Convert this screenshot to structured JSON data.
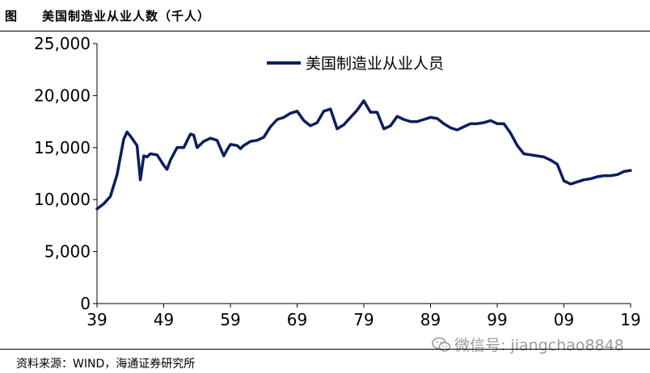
{
  "header": {
    "fig_label": "图",
    "title": "美国制造业从业人数（千人）"
  },
  "footer": {
    "source": "资料来源：WIND，海通证券研究所"
  },
  "watermark": {
    "text": "微信号: jiangchao8848"
  },
  "colors": {
    "line": "#0b1f5c",
    "axis": "#000000",
    "text": "#000000",
    "watermark": "#9a9a9a"
  },
  "chart_data": {
    "type": "line",
    "title": "",
    "xlabel": "",
    "ylabel": "",
    "ylim": [
      0,
      25000
    ],
    "xlim": [
      1939,
      2019
    ],
    "yticks": [
      0,
      5000,
      10000,
      15000,
      20000,
      25000
    ],
    "ytick_labels": [
      "0",
      "5,000",
      "10,000",
      "15,000",
      "20,000",
      "25,000"
    ],
    "xticks": [
      1939,
      1949,
      1959,
      1969,
      1979,
      1989,
      1999,
      2009,
      2019
    ],
    "xtick_labels": [
      "39",
      "49",
      "59",
      "69",
      "79",
      "89",
      "99",
      "09",
      "19"
    ],
    "grid": false,
    "legend_position": "top-center",
    "series": [
      {
        "name": "美国制造业从业人员",
        "x": [
          1939,
          1940,
          1941,
          1942,
          1943,
          1943.5,
          1944,
          1945,
          1945.5,
          1946,
          1946.5,
          1947,
          1948,
          1949,
          1949.5,
          1950,
          1951,
          1952,
          1953,
          1953.5,
          1954,
          1955,
          1956,
          1957,
          1958,
          1958.5,
          1959,
          1960,
          1960.5,
          1961,
          1962,
          1963,
          1964,
          1965,
          1966,
          1967,
          1968,
          1969,
          1970,
          1971,
          1972,
          1973,
          1974,
          1975,
          1976,
          1977,
          1978,
          1979,
          1980,
          1981,
          1982,
          1983,
          1984,
          1985,
          1986,
          1987,
          1988,
          1989,
          1990,
          1991,
          1992,
          1993,
          1994,
          1995,
          1996,
          1997,
          1998,
          1999,
          2000,
          2001,
          2002,
          2003,
          2004,
          2005,
          2006,
          2007,
          2008,
          2009,
          2010,
          2011,
          2012,
          2013,
          2014,
          2015,
          2016,
          2017,
          2018,
          2019
        ],
        "values": [
          9100,
          9600,
          10300,
          12400,
          15800,
          16500,
          16100,
          15200,
          11900,
          14200,
          14100,
          14400,
          14300,
          13300,
          12900,
          13800,
          15000,
          15000,
          16300,
          16200,
          15000,
          15600,
          15900,
          15700,
          14200,
          14800,
          15300,
          15200,
          14900,
          15200,
          15600,
          15700,
          16000,
          17000,
          17700,
          17900,
          18300,
          18500,
          17600,
          17100,
          17400,
          18500,
          18700,
          16800,
          17200,
          17900,
          18600,
          19500,
          18400,
          18400,
          16800,
          17100,
          18000,
          17700,
          17500,
          17500,
          17700,
          17900,
          17800,
          17300,
          16900,
          16700,
          17000,
          17300,
          17300,
          17400,
          17600,
          17300,
          17300,
          16400,
          15200,
          14400,
          14300,
          14200,
          14100,
          13800,
          13400,
          11800,
          11500,
          11700,
          11900,
          12000,
          12200,
          12300,
          12300,
          12400,
          12700,
          12800
        ]
      }
    ]
  }
}
